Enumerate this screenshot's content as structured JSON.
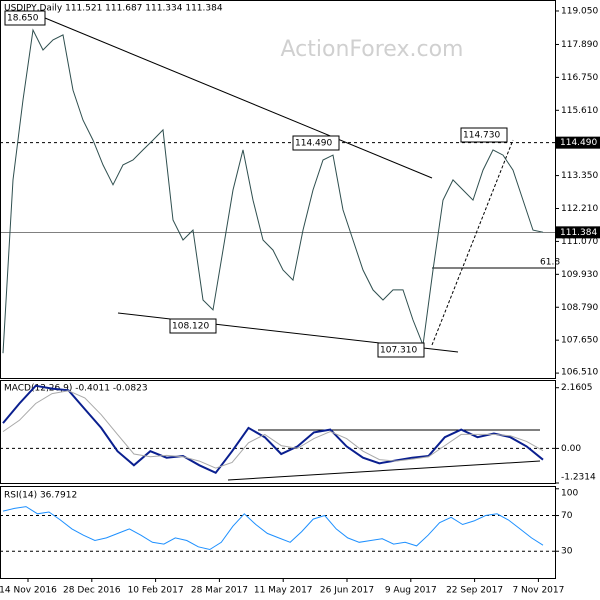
{
  "chart_data": [
    {
      "type": "line",
      "title": "USDJPY,Daily 111.521 111.687 111.334 111.384",
      "watermark": "ActionForex.com",
      "series": [
        {
          "name": "USDJPY",
          "color": "#2f4f4f",
          "values": [
            107.2,
            113.2,
            115.97,
            118.39,
            117.7,
            118.05,
            118.22,
            116.31,
            115.27,
            114.58,
            113.72,
            113.03,
            113.72,
            113.89,
            114.24,
            114.58,
            114.93,
            111.81,
            111.12,
            111.46,
            109.04,
            108.7,
            110.77,
            112.85,
            114.24,
            112.5,
            111.12,
            110.77,
            110.08,
            109.73,
            111.46,
            112.85,
            113.89,
            114.06,
            112.16,
            111.12,
            110.08,
            109.39,
            109.04,
            109.39,
            109.39,
            108.35,
            107.48,
            110.08,
            112.5,
            113.2,
            112.85,
            112.5,
            113.54,
            114.24,
            114.06,
            113.54,
            112.5,
            111.46,
            111.384
          ]
        }
      ],
      "ylim": [
        106.34,
        119.43
      ],
      "yticks": [
        {
          "value": 119.05,
          "label": "119.050"
        },
        {
          "value": 117.89,
          "label": "117.890"
        },
        {
          "value": 116.75,
          "label": "116.750"
        },
        {
          "value": 115.61,
          "label": "115.610"
        },
        {
          "value": 113.35,
          "label": "113.350"
        },
        {
          "value": 112.21,
          "label": "112.210"
        },
        {
          "value": 111.07,
          "label": "111.070"
        },
        {
          "value": 109.93,
          "label": "109.930"
        },
        {
          "value": 108.79,
          "label": "108.790"
        },
        {
          "value": 107.65,
          "label": "107.650"
        },
        {
          "value": 106.51,
          "label": "106.510"
        }
      ],
      "hlines": [
        {
          "value": 114.49,
          "label": "114.490"
        },
        {
          "value": 111.384,
          "label": "111.384"
        }
      ],
      "annotations": [
        "18.650",
        "114.490",
        "114.730",
        "108.120",
        "107.310",
        "61.8"
      ]
    },
    {
      "type": "line",
      "title": "MACD(12,26,9) -0.4011 -0.0823",
      "series": [
        {
          "name": "MACD",
          "color": "#0a1f8f",
          "values": [
            0.9,
            1.6,
            2.23,
            2.13,
            2.07,
            1.4,
            0.73,
            -0.1,
            -0.6,
            -0.1,
            -0.33,
            -0.27,
            -0.6,
            -0.87,
            -0.1,
            0.73,
            0.4,
            -0.2,
            0.07,
            0.57,
            0.67,
            0.07,
            -0.33,
            -0.53,
            -0.43,
            -0.33,
            -0.27,
            0.4,
            0.67,
            0.4,
            0.53,
            0.4,
            0.07,
            -0.4011
          ]
        },
        {
          "name": "Signal",
          "color": "#a9a9a9",
          "values": [
            0.6,
            1.0,
            1.6,
            1.95,
            2.05,
            1.8,
            1.2,
            0.5,
            -0.2,
            -0.3,
            -0.25,
            -0.3,
            -0.45,
            -0.7,
            -0.5,
            0.2,
            0.5,
            0.1,
            0.0,
            0.35,
            0.6,
            0.35,
            -0.1,
            -0.4,
            -0.45,
            -0.38,
            -0.3,
            0.1,
            0.5,
            0.5,
            0.5,
            0.45,
            0.25,
            -0.0823
          ]
        }
      ],
      "ylim": [
        -1.2314,
        2.4
      ],
      "yticks": [
        2.1605,
        {
          "value": 0,
          "label": "0.00"
        },
        -1.2314
      ]
    },
    {
      "type": "line",
      "title": "RSI(14) 36.7912",
      "series": [
        {
          "name": "RSI",
          "color": "#1e90ff",
          "values": [
            75,
            78,
            80,
            72,
            74,
            65,
            55,
            48,
            42,
            45,
            50,
            55,
            48,
            40,
            38,
            45,
            42,
            35,
            32,
            40,
            58,
            72,
            60,
            50,
            45,
            40,
            52,
            66,
            70,
            55,
            45,
            40,
            42,
            44,
            38,
            40,
            36,
            48,
            62,
            68,
            60,
            64,
            70,
            72,
            65,
            55,
            45,
            36.7912
          ]
        }
      ],
      "ylim": [
        0,
        102
      ],
      "yticks": [
        100,
        70,
        30
      ],
      "xticks": [
        "14 Nov 2016",
        "28 Dec 2016",
        "10 Feb 2017",
        "28 Mar 2017",
        "11 May 2017",
        "26 Jun 2017",
        "9 Aug 2017",
        "22 Sep 2017",
        "7 Nov 2017"
      ]
    }
  ]
}
